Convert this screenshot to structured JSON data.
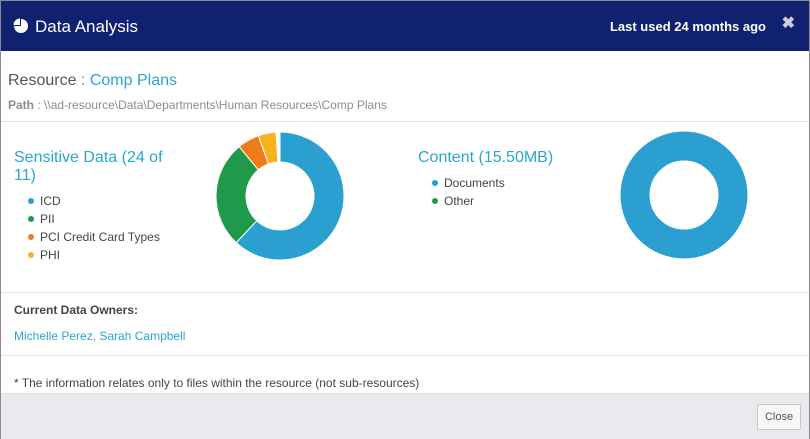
{
  "header": {
    "title": "Data Analysis",
    "last_used": "Last used 24 months ago",
    "close_glyph": "✖"
  },
  "resource": {
    "label": "Resource",
    "separator": ":",
    "name": "Comp Plans",
    "path_label": "Path",
    "path_separator": ":",
    "path": "\\\\ad-resource\\Data\\Departments\\Human Resources\\Comp Plans"
  },
  "sensitive": {
    "title": "Sensitive Data (24 of 11)",
    "legend": [
      {
        "label": "ICD",
        "color": "#2a9fd0"
      },
      {
        "label": "PII",
        "color": "#1f9a4a"
      },
      {
        "label": "PCI Credit Card Types",
        "color": "#ef7b1a"
      },
      {
        "label": "PHI",
        "color": "#f9b21e"
      }
    ],
    "slices": [
      {
        "label": "ICD",
        "value": 0.62,
        "color": "#2a9fd0"
      },
      {
        "label": "PII",
        "value": 0.27,
        "color": "#1f9a4a"
      },
      {
        "label": "PCI Credit Card Types",
        "value": 0.055,
        "color": "#ef7b1a"
      },
      {
        "label": "PHI",
        "value": 0.045,
        "color": "#f9b21e"
      }
    ]
  },
  "content": {
    "title": "Content (15.50MB)",
    "legend": [
      {
        "label": "Documents",
        "color": "#2a9fd0"
      },
      {
        "label": "Other",
        "color": "#1f9a4a"
      }
    ],
    "slices": [
      {
        "label": "Documents",
        "value": 1.0,
        "color": "#2a9fd0"
      },
      {
        "label": "Other",
        "value": 0.0,
        "color": "#1f9a4a"
      }
    ]
  },
  "owners": {
    "label": "Current Data Owners:",
    "names": [
      "Michelle Perez,",
      "Sarah Campbell"
    ]
  },
  "note": "* The information relates only to files within the resource (not sub-resources)",
  "footer": {
    "close_label": "Close"
  },
  "icons": {
    "header": "pie-chart-icon"
  }
}
